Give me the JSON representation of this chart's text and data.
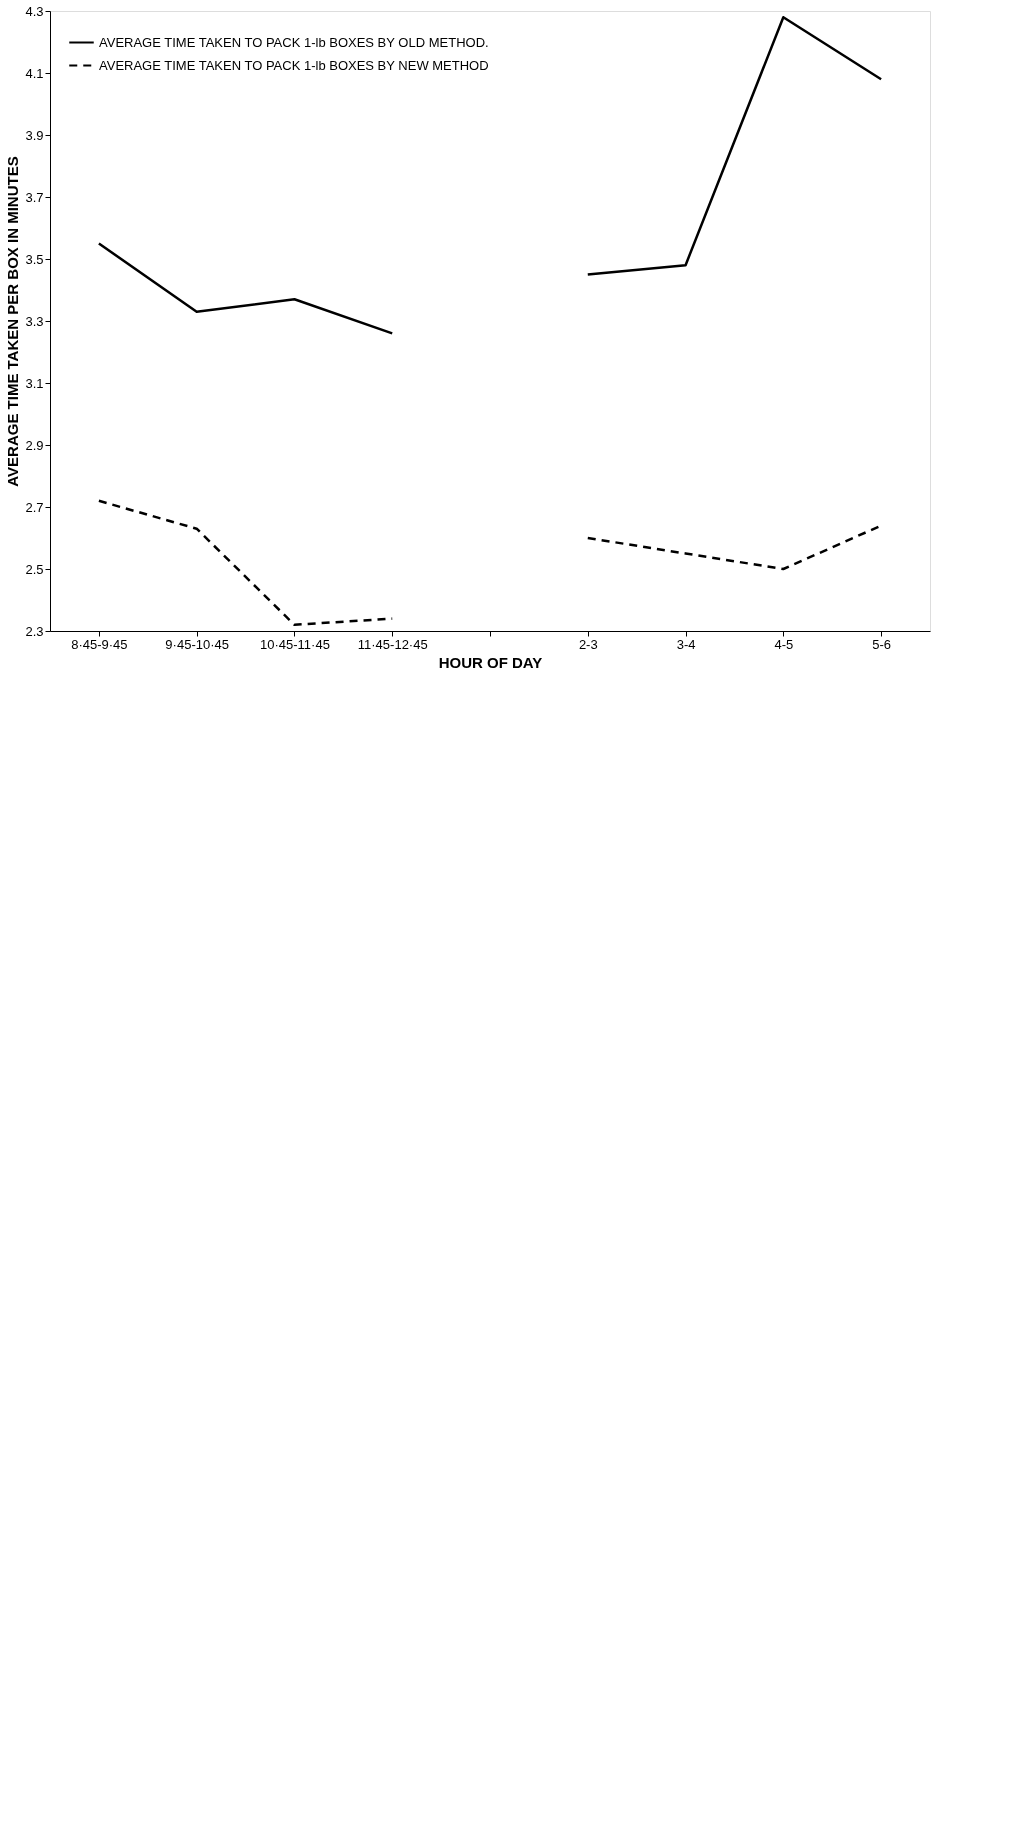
{
  "chart_data": {
    "type": "line",
    "xlabel": "HOUR OF DAY",
    "ylabel": "AVERAGE TIME TAKEN PER BOX IN MINUTES",
    "categories": [
      "8·45-9·45",
      "9·45-10·45",
      "10·45-11·45",
      "11·45-12·45",
      null,
      "2-3",
      "3-4",
      "4-5",
      "5-6"
    ],
    "series": [
      {
        "name": "AVERAGE TIME TAKEN TO PACK 1-lb BOXES BY OLD METHOD.",
        "color": "#000000",
        "line_style": "solid",
        "values": [
          3.55,
          3.33,
          3.37,
          3.26,
          null,
          3.45,
          3.48,
          4.28,
          4.08
        ]
      },
      {
        "name": "AVERAGE TIME TAKEN TO PACK 1-lb BOXES BY NEW METHOD",
        "color": "#000000",
        "line_style": "dashed",
        "values": [
          2.72,
          2.63,
          2.32,
          2.34,
          null,
          2.6,
          2.55,
          2.5,
          2.64
        ]
      }
    ],
    "ylim": [
      2.3,
      4.3
    ],
    "yticks": [
      2.3,
      2.5,
      2.7,
      2.9,
      3.1,
      3.3,
      3.5,
      3.7,
      3.9,
      4.1,
      4.3
    ],
    "grid": false,
    "legend": "top left",
    "marker": "none"
  }
}
